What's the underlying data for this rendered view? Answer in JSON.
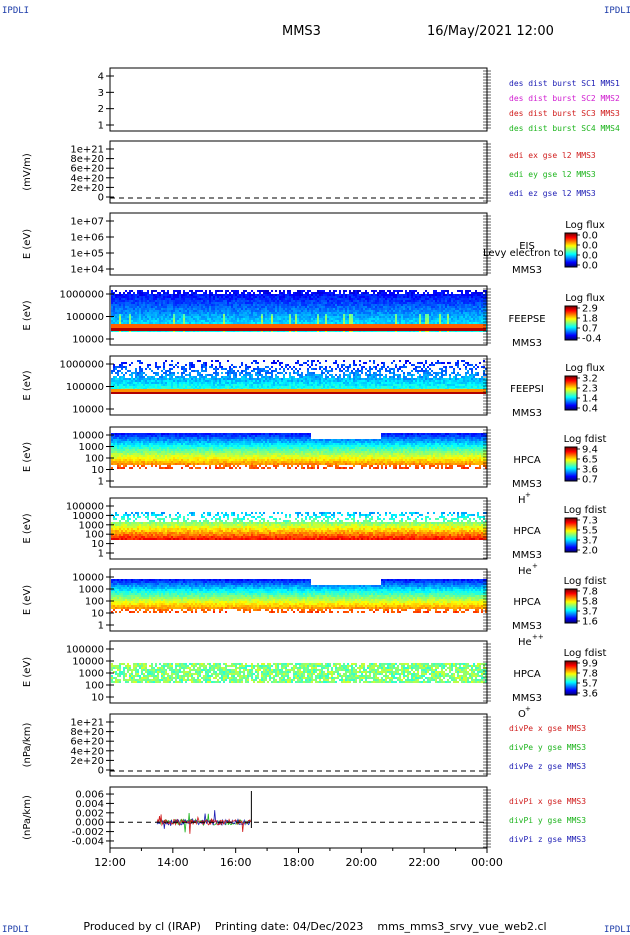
{
  "corner_label": "IPDLI",
  "title": {
    "spacecraft": "MMS3",
    "date": "16/May/2021 12:00"
  },
  "footer": {
    "producer": "Produced by cl (IRAP)",
    "printing": "Printing date: 04/Dec/2023",
    "script": "mms_mms3_srvy_vue_web2.cl"
  },
  "chart_data": {
    "type": "multi-panel",
    "x_axis": {
      "range": [
        "12:00",
        "00:00"
      ],
      "ticks": [
        "12:00",
        "14:00",
        "16:00",
        "18:00",
        "20:00",
        "22:00",
        "00:00"
      ]
    },
    "panels": [
      {
        "id": "burst",
        "kind": "empty",
        "ylabel": "",
        "yticks": [
          "4",
          "3",
          "2",
          "1"
        ],
        "legend": [
          {
            "text": "des dist burst SC1 MMS1",
            "color": "#1c1cb4"
          },
          {
            "text": "des dist burst SC2 MMS2",
            "color": "#d01cd0"
          },
          {
            "text": "des dist burst SC3 MMS3",
            "color": "#d01c1c"
          },
          {
            "text": "des dist burst SC4 MMS4",
            "color": "#1cb41c"
          }
        ]
      },
      {
        "id": "edi",
        "kind": "empty",
        "ylabel": "(mV/m)",
        "yticks": [
          "1e+21",
          "8e+20",
          "6e+20",
          "4e+20",
          "2e+20",
          "0"
        ],
        "zero_line": true,
        "legend": [
          {
            "text": "edi ex gse l2 MMS3",
            "color": "#d01c1c"
          },
          {
            "text": "edi ey gse l2 MMS3",
            "color": "#1cb41c"
          },
          {
            "text": "edi ez gse l2 MMS3",
            "color": "#1c1cb4"
          }
        ]
      },
      {
        "id": "eis",
        "kind": "spectrogram",
        "ylabel": "E (eV)",
        "yticks": [
          "1e+07",
          "1e+06",
          "1e+05",
          "1e+04"
        ],
        "inst": [
          "EIS",
          "MMS3"
        ],
        "overlay": "Levy electron to",
        "colorbar": {
          "title": "Log flux",
          "ticks": [
            "0.0",
            "0.0",
            "0.0",
            "0.0"
          ]
        },
        "style": "none"
      },
      {
        "id": "feepse",
        "kind": "spectrogram",
        "ylabel": "E (eV)",
        "yticks": [
          "1000000",
          "100000",
          "10000"
        ],
        "inst": [
          "FEEPSE",
          "MMS3"
        ],
        "colorbar": {
          "title": "Log flux",
          "ticks": [
            "2.9",
            "1.8",
            "0.7",
            "-0.4"
          ]
        },
        "style": "feepse"
      },
      {
        "id": "feepsi",
        "kind": "spectrogram",
        "ylabel": "E (eV)",
        "yticks": [
          "1000000",
          "100000",
          "10000"
        ],
        "inst": [
          "FEEPSI",
          "MMS3"
        ],
        "colorbar": {
          "title": "Log flux",
          "ticks": [
            "3.2",
            "2.3",
            "1.4",
            "0.4"
          ]
        },
        "style": "feepsi"
      },
      {
        "id": "hpca_h",
        "kind": "spectrogram",
        "ylabel": "E (eV)",
        "yticks": [
          "10000",
          "1000",
          "100",
          "10",
          "1"
        ],
        "inst": [
          "HPCA",
          "MMS3"
        ],
        "species": "H",
        "charge": "+",
        "colorbar": {
          "title": "Log fdist",
          "ticks": [
            "9.4",
            "6.5",
            "3.6",
            "0.7"
          ]
        },
        "style": "hpca_h"
      },
      {
        "id": "hpca_he",
        "kind": "spectrogram",
        "ylabel": "E (eV)",
        "yticks": [
          "100000",
          "10000",
          "1000",
          "100",
          "10",
          "1"
        ],
        "inst": [
          "HPCA",
          "MMS3"
        ],
        "species": "He",
        "charge": "+",
        "colorbar": {
          "title": "Log fdist",
          "ticks": [
            "7.3",
            "5.5",
            "3.7",
            "2.0"
          ]
        },
        "style": "hpca_he"
      },
      {
        "id": "hpca_hepp",
        "kind": "spectrogram",
        "ylabel": "E (eV)",
        "yticks": [
          "10000",
          "1000",
          "100",
          "10",
          "1"
        ],
        "inst": [
          "HPCA",
          "MMS3"
        ],
        "species": "He",
        "charge": "++",
        "colorbar": {
          "title": "Log fdist",
          "ticks": [
            "7.8",
            "5.8",
            "3.7",
            "1.6"
          ]
        },
        "style": "hpca_hepp"
      },
      {
        "id": "hpca_o",
        "kind": "spectrogram",
        "ylabel": "E (eV)",
        "yticks": [
          "100000",
          "10000",
          "1000",
          "100",
          "10"
        ],
        "inst": [
          "HPCA",
          "MMS3"
        ],
        "species": "O",
        "charge": "+",
        "colorbar": {
          "title": "Log fdist",
          "ticks": [
            "9.9",
            "7.8",
            "5.7",
            "3.6"
          ]
        },
        "style": "hpca_o"
      },
      {
        "id": "divpe",
        "kind": "empty",
        "ylabel": "(nPa/km)",
        "yticks": [
          "1e+21",
          "8e+20",
          "6e+20",
          "4e+20",
          "2e+20",
          "0"
        ],
        "zero_line": true,
        "legend": [
          {
            "text": "divPe x gse MMS3",
            "color": "#d01c1c"
          },
          {
            "text": "divPe y gse MMS3",
            "color": "#1cb41c"
          },
          {
            "text": "divPe z gse MMS3",
            "color": "#1c1cb4"
          }
        ]
      },
      {
        "id": "divpi",
        "kind": "line",
        "ylabel": "(nPa/km)",
        "yticks": [
          "0.006",
          "0.004",
          "0.002",
          "0.000",
          "-0.002",
          "-0.004"
        ],
        "ylim": [
          -0.0055,
          0.0075
        ],
        "zero_line": true,
        "data_span": [
          "13:30",
          "16:30"
        ],
        "legend": [
          {
            "text": "divPi x gse MMS3",
            "color": "#d01c1c"
          },
          {
            "text": "divPi y gse MMS3",
            "color": "#1cb41c"
          },
          {
            "text": "divPi z gse MMS3",
            "color": "#1c1cb4"
          }
        ]
      }
    ]
  }
}
